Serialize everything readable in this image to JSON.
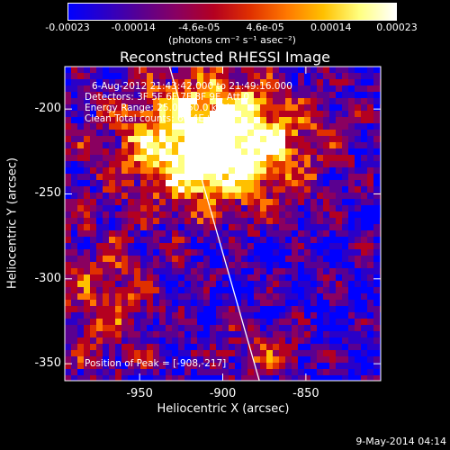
{
  "colors": {
    "background": "#000000",
    "text": "#ffffff",
    "colormap": [
      "#0000ff",
      "#2a00c8",
      "#5a0090",
      "#8a0060",
      "#b40020",
      "#e03000",
      "#ff7800",
      "#ffc000",
      "#ffff80",
      "#ffffff"
    ]
  },
  "colorbar": {
    "ticks": [
      "-0.00023",
      "-0.00014",
      "-4.6e-05",
      "4.6e-05",
      "0.00014",
      "0.00023"
    ],
    "unit_label": "(photons cm⁻² s⁻¹ asec⁻²)"
  },
  "info": {
    "line1": "6-Aug-2012 21:43:42.000 to 21:49:16.000",
    "line2": "Detectors: 3F 5F 6F 7F 8F 9F, Att 0",
    "line3": "Energy Range: 25.0 - 50.0 keV",
    "line4": "Clean     Total counts: 6.54E+04",
    "peak": "Position of Peak = [-908,-217]"
  },
  "footer": {
    "timestamp": "9-May-2014 04:14"
  },
  "chart_data": {
    "type": "heatmap",
    "title": "Reconstructed RHESSI Image",
    "xlabel": "Heliocentric X (arcsec)",
    "ylabel": "Heliocentric Y (arcsec)",
    "xlim": [
      -995,
      -805
    ],
    "ylim": [
      -360,
      -175
    ],
    "x_ticks": [
      -950,
      -900,
      -850
    ],
    "y_ticks": [
      -200,
      -250,
      -300,
      -350
    ],
    "x_tick_labels": [
      "-950",
      "-900",
      "-850"
    ],
    "y_tick_labels": [
      "-200",
      "-250",
      "-300",
      "-350"
    ],
    "value_range": [
      -0.00023,
      0.00023
    ],
    "peak": [
      -908,
      -217
    ],
    "limb_line": [
      [
        -932,
        -175
      ],
      [
        -878,
        -360
      ]
    ]
  }
}
